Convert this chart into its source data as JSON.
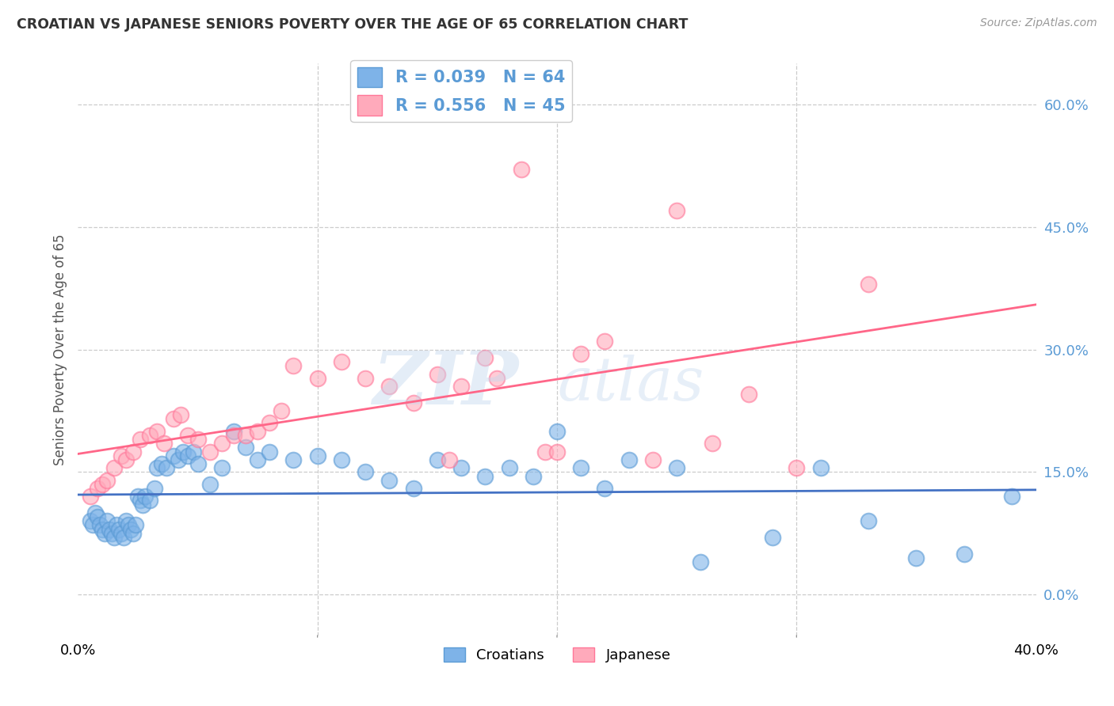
{
  "title": "CROATIAN VS JAPANESE SENIORS POVERTY OVER THE AGE OF 65 CORRELATION CHART",
  "source": "Source: ZipAtlas.com",
  "ylabel": "Seniors Poverty Over the Age of 65",
  "yticks_labels": [
    "0.0%",
    "15.0%",
    "30.0%",
    "45.0%",
    "60.0%"
  ],
  "ytick_values": [
    0.0,
    0.15,
    0.3,
    0.45,
    0.6
  ],
  "xlim": [
    0.0,
    0.4
  ],
  "ylim": [
    -0.05,
    0.65
  ],
  "croatian_color": "#7EB3E8",
  "croatian_edge": "#5B9BD5",
  "japanese_color": "#FFAABB",
  "japanese_edge": "#FF7799",
  "line_croatian": "#4472C4",
  "line_japanese": "#FF6688",
  "croatian_R": 0.039,
  "croatian_N": 64,
  "japanese_R": 0.556,
  "japanese_N": 45,
  "background_color": "#FFFFFF",
  "grid_color": "#CCCCCC",
  "watermark_color": "#C5D8EE",
  "tick_label_color": "#5B9BD5",
  "croatian_x": [
    0.005,
    0.006,
    0.007,
    0.008,
    0.009,
    0.01,
    0.011,
    0.012,
    0.013,
    0.014,
    0.015,
    0.016,
    0.017,
    0.018,
    0.019,
    0.02,
    0.021,
    0.022,
    0.023,
    0.024,
    0.025,
    0.026,
    0.027,
    0.028,
    0.03,
    0.032,
    0.033,
    0.035,
    0.037,
    0.04,
    0.042,
    0.044,
    0.046,
    0.048,
    0.05,
    0.055,
    0.06,
    0.065,
    0.07,
    0.075,
    0.08,
    0.09,
    0.1,
    0.11,
    0.12,
    0.13,
    0.14,
    0.15,
    0.16,
    0.17,
    0.18,
    0.19,
    0.2,
    0.21,
    0.22,
    0.23,
    0.25,
    0.26,
    0.29,
    0.31,
    0.33,
    0.35,
    0.37,
    0.39
  ],
  "croatian_y": [
    0.09,
    0.085,
    0.1,
    0.095,
    0.085,
    0.08,
    0.075,
    0.09,
    0.08,
    0.075,
    0.07,
    0.085,
    0.08,
    0.075,
    0.07,
    0.09,
    0.085,
    0.08,
    0.075,
    0.085,
    0.12,
    0.115,
    0.11,
    0.12,
    0.115,
    0.13,
    0.155,
    0.16,
    0.155,
    0.17,
    0.165,
    0.175,
    0.17,
    0.175,
    0.16,
    0.135,
    0.155,
    0.2,
    0.18,
    0.165,
    0.175,
    0.165,
    0.17,
    0.165,
    0.15,
    0.14,
    0.13,
    0.165,
    0.155,
    0.145,
    0.155,
    0.145,
    0.2,
    0.155,
    0.13,
    0.165,
    0.155,
    0.04,
    0.07,
    0.155,
    0.09,
    0.045,
    0.05,
    0.12
  ],
  "japanese_x": [
    0.005,
    0.008,
    0.01,
    0.012,
    0.015,
    0.018,
    0.02,
    0.023,
    0.026,
    0.03,
    0.033,
    0.036,
    0.04,
    0.043,
    0.046,
    0.05,
    0.055,
    0.06,
    0.065,
    0.07,
    0.075,
    0.08,
    0.085,
    0.09,
    0.1,
    0.11,
    0.12,
    0.13,
    0.14,
    0.15,
    0.155,
    0.16,
    0.17,
    0.175,
    0.185,
    0.195,
    0.2,
    0.21,
    0.22,
    0.24,
    0.25,
    0.265,
    0.28,
    0.3,
    0.33
  ],
  "japanese_y": [
    0.12,
    0.13,
    0.135,
    0.14,
    0.155,
    0.17,
    0.165,
    0.175,
    0.19,
    0.195,
    0.2,
    0.185,
    0.215,
    0.22,
    0.195,
    0.19,
    0.175,
    0.185,
    0.195,
    0.195,
    0.2,
    0.21,
    0.225,
    0.28,
    0.265,
    0.285,
    0.265,
    0.255,
    0.235,
    0.27,
    0.165,
    0.255,
    0.29,
    0.265,
    0.52,
    0.175,
    0.175,
    0.295,
    0.31,
    0.165,
    0.47,
    0.185,
    0.245,
    0.155,
    0.38
  ]
}
